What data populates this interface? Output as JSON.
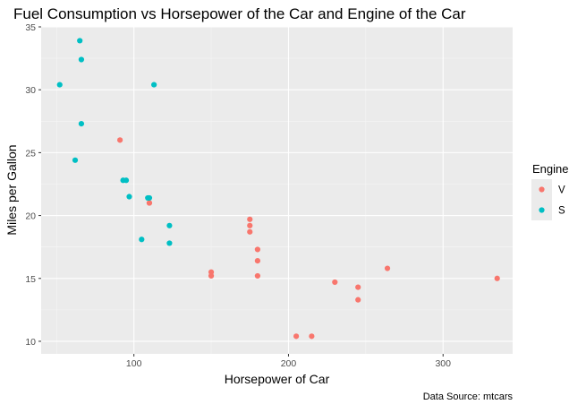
{
  "chart_data": {
    "type": "scatter",
    "title": "Fuel Consumption vs Horsepower of the Car and Engine of the Car",
    "xlabel": "Horsepower of Car",
    "ylabel": "Miles per Gallon",
    "caption": "Data Source: mtcars",
    "xlim": [
      40,
      345
    ],
    "ylim": [
      9,
      35
    ],
    "xticks": [
      100,
      200,
      300
    ],
    "yticks": [
      10,
      15,
      20,
      25,
      30,
      35
    ],
    "grid": true,
    "legend": {
      "title": "Engine",
      "placement": "right"
    },
    "series": [
      {
        "name": "V",
        "color": "#F8766D",
        "points": [
          {
            "x": 110,
            "y": 21.0
          },
          {
            "x": 110,
            "y": 21.0
          },
          {
            "x": 175,
            "y": 18.7
          },
          {
            "x": 245,
            "y": 14.3
          },
          {
            "x": 180,
            "y": 16.4
          },
          {
            "x": 180,
            "y": 17.3
          },
          {
            "x": 180,
            "y": 15.2
          },
          {
            "x": 205,
            "y": 10.4
          },
          {
            "x": 215,
            "y": 10.4
          },
          {
            "x": 230,
            "y": 14.7
          },
          {
            "x": 150,
            "y": 15.5
          },
          {
            "x": 150,
            "y": 15.2
          },
          {
            "x": 245,
            "y": 13.3
          },
          {
            "x": 175,
            "y": 19.2
          },
          {
            "x": 91,
            "y": 26.0
          },
          {
            "x": 264,
            "y": 15.8
          },
          {
            "x": 175,
            "y": 19.7
          },
          {
            "x": 335,
            "y": 15.0
          }
        ]
      },
      {
        "name": "S",
        "color": "#00BFC4",
        "points": [
          {
            "x": 93,
            "y": 22.8
          },
          {
            "x": 110,
            "y": 21.4
          },
          {
            "x": 105,
            "y": 18.1
          },
          {
            "x": 62,
            "y": 24.4
          },
          {
            "x": 95,
            "y": 22.8
          },
          {
            "x": 123,
            "y": 19.2
          },
          {
            "x": 123,
            "y": 17.8
          },
          {
            "x": 66,
            "y": 32.4
          },
          {
            "x": 52,
            "y": 30.4
          },
          {
            "x": 65,
            "y": 33.9
          },
          {
            "x": 97,
            "y": 21.5
          },
          {
            "x": 66,
            "y": 27.3
          },
          {
            "x": 113,
            "y": 30.4
          },
          {
            "x": 109,
            "y": 21.4
          }
        ]
      }
    ]
  }
}
